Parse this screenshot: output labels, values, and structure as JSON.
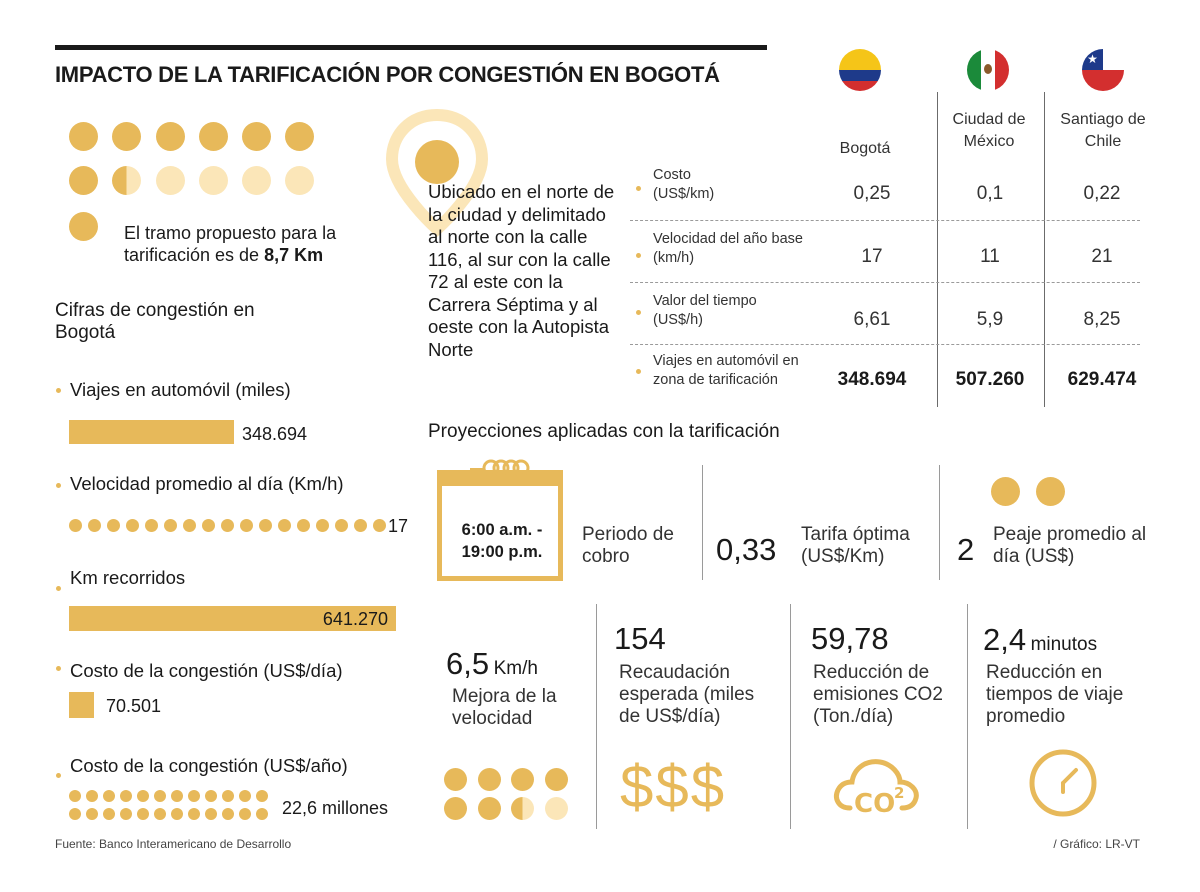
{
  "title": "IMPACTO DE LA TARIFICACIÓN POR CONGESTIÓN EN BOGOTÁ",
  "colors": {
    "accent": "#e7b95a",
    "accent_light": "#fbe6b8",
    "text": "#1a1a1a",
    "rule": "#9a9a9a"
  },
  "tramo": {
    "text": "El tramo propuesto para la tarificación es de",
    "value": "8,7 Km"
  },
  "location_text": "Ubicado en el norte de la ciudad y delimitado al norte con la calle 116, al sur con la calle 72 al este con la Carrera Séptima y al oeste con la Autopista Norte",
  "cifras": {
    "heading": "Cifras de congestión en Bogotá",
    "items": [
      {
        "label": "Viajes en automóvil (miles)",
        "value": "348.694"
      },
      {
        "label": "Velocidad promedio al día (Km/h)",
        "value": "17"
      },
      {
        "label": "Km recorridos",
        "value": "641.270"
      },
      {
        "label": "Costo de la congestión (US$/día)",
        "value": "70.501"
      },
      {
        "label": "Costo de la congestión (US$/año)",
        "value": "22,6 millones"
      }
    ]
  },
  "table": {
    "columns": [
      "Bogotá",
      "Ciudad de México",
      "Santiago de Chile"
    ],
    "flags": [
      "colombia-flag-icon",
      "mexico-flag-icon",
      "chile-flag-icon"
    ],
    "rows": [
      {
        "label": "Costo (US$/km)",
        "values": [
          "0,25",
          "0,1",
          "0,22"
        ]
      },
      {
        "label": "Velocidad del año base (km/h)",
        "values": [
          "17",
          "11",
          "21"
        ]
      },
      {
        "label": "Valor del tiempo (US$/h)",
        "values": [
          "6,61",
          "5,9",
          "8,25"
        ]
      },
      {
        "label": "Viajes en automóvil en zona de tarificación",
        "values": [
          "348.694",
          "507.260",
          "629.474"
        ]
      }
    ]
  },
  "proyecciones": {
    "heading": "Proyecciones aplicadas con la tarificación",
    "periodo": {
      "time": "6:00 a.m. - 19:00 p.m.",
      "label": "Periodo de cobro"
    },
    "tarifa": {
      "value": "0,33",
      "label": "Tarifa óptima (US$/Km)"
    },
    "peaje": {
      "value": "2",
      "label": "Peaje promedio al día (US$)"
    },
    "velocidad": {
      "value": "6,5",
      "unit": "Km/h",
      "label": "Mejora de la velocidad"
    },
    "recaudacion": {
      "value": "154",
      "label": "Recaudación esperada (miles de US$/día)",
      "icon_text": "$$$"
    },
    "emisiones": {
      "value": "59,78",
      "label": "Reducción de emisiones CO2 (Ton./día)"
    },
    "tiempo": {
      "value": "2,4",
      "unit": "minutos",
      "label": "Reducción en tiempos de viaje promedio"
    }
  },
  "footer": {
    "source": "Fuente: Banco Interamericano de Desarrollo",
    "credit": "/ Gráfico: LR-VT"
  }
}
